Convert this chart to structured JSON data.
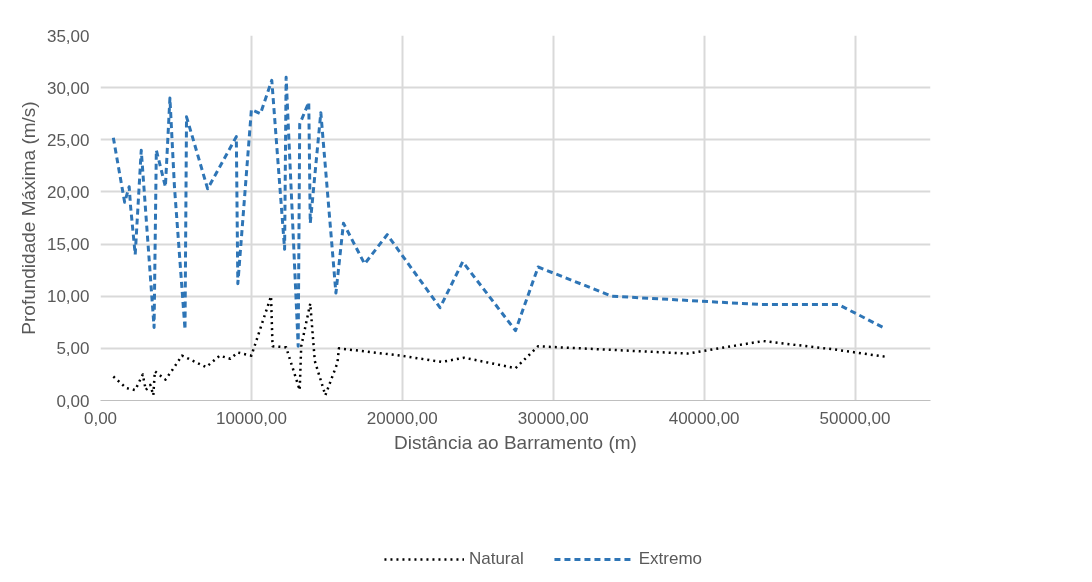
{
  "chart_data": {
    "type": "line",
    "xlabel": "Distância ao Barramento (m)",
    "ylabel": "Profundidade Máxima (m/s)",
    "xlim": [
      0,
      55000
    ],
    "ylim": [
      0,
      35
    ],
    "xticks": [
      {
        "value": 0,
        "label": "0,00"
      },
      {
        "value": 10000,
        "label": "10000,00"
      },
      {
        "value": 20000,
        "label": "20000,00"
      },
      {
        "value": 30000,
        "label": "30000,00"
      },
      {
        "value": 40000,
        "label": "40000,00"
      },
      {
        "value": 50000,
        "label": "50000,00"
      }
    ],
    "yticks": [
      {
        "value": 0,
        "label": "0,00"
      },
      {
        "value": 5,
        "label": "5,00"
      },
      {
        "value": 10,
        "label": "10,00"
      },
      {
        "value": 15,
        "label": "15,00"
      },
      {
        "value": 20,
        "label": "20,00"
      },
      {
        "value": 25,
        "label": "25,00"
      },
      {
        "value": 30,
        "label": "30,00"
      },
      {
        "value": 35,
        "label": "35,00"
      }
    ],
    "grid": true,
    "legend": "bottom",
    "marker": "none",
    "series": [
      {
        "name": "Natural",
        "color": "#000000",
        "line_style": "dotted",
        "x": [
          850,
          1700,
          2300,
          2800,
          3000,
          3300,
          3500,
          3600,
          4300,
          4700,
          5400,
          7000,
          7900,
          8600,
          9100,
          10000,
          11300,
          11400,
          12300,
          13200,
          13300,
          13900,
          14200,
          14900,
          15700,
          15800,
          19900,
          22600,
          24100,
          27500,
          29000,
          38900,
          43900,
          48600,
          52000
        ],
        "values": [
          2.3,
          1.2,
          1.0,
          2.5,
          1.0,
          1.5,
          0.5,
          2.8,
          2.0,
          2.8,
          4.3,
          3.2,
          4.3,
          4.0,
          4.6,
          4.3,
          10.0,
          5.2,
          5.1,
          1.0,
          5.2,
          9.3,
          3.8,
          0.5,
          3.6,
          5.0,
          4.3,
          3.7,
          4.1,
          3.1,
          5.2,
          4.5,
          5.7,
          4.9,
          4.2
        ]
      },
      {
        "name": "Extremo",
        "color": "#2e75b6",
        "line_style": "dashed",
        "x": [
          850,
          1600,
          1900,
          2000,
          2300,
          2700,
          3550,
          3700,
          4300,
          4600,
          4900,
          5600,
          5700,
          7100,
          9000,
          9100,
          10000,
          10600,
          11350,
          12200,
          12300,
          13100,
          13200,
          13800,
          13900,
          14600,
          15600,
          16100,
          17500,
          19000,
          22500,
          24000,
          27500,
          29000,
          33900,
          43800,
          48900,
          52000
        ],
        "values": [
          25.2,
          19.0,
          20.5,
          18.5,
          14.0,
          24.0,
          7.0,
          24.0,
          20.5,
          29.0,
          20.5,
          6.8,
          27.2,
          20.3,
          25.3,
          11.2,
          27.9,
          27.5,
          30.7,
          14.5,
          31.0,
          5.2,
          26.5,
          28.6,
          17.0,
          27.6,
          10.3,
          17.0,
          13.1,
          15.9,
          8.9,
          13.3,
          6.7,
          12.8,
          10.0,
          9.2,
          9.2,
          6.9
        ]
      }
    ]
  }
}
